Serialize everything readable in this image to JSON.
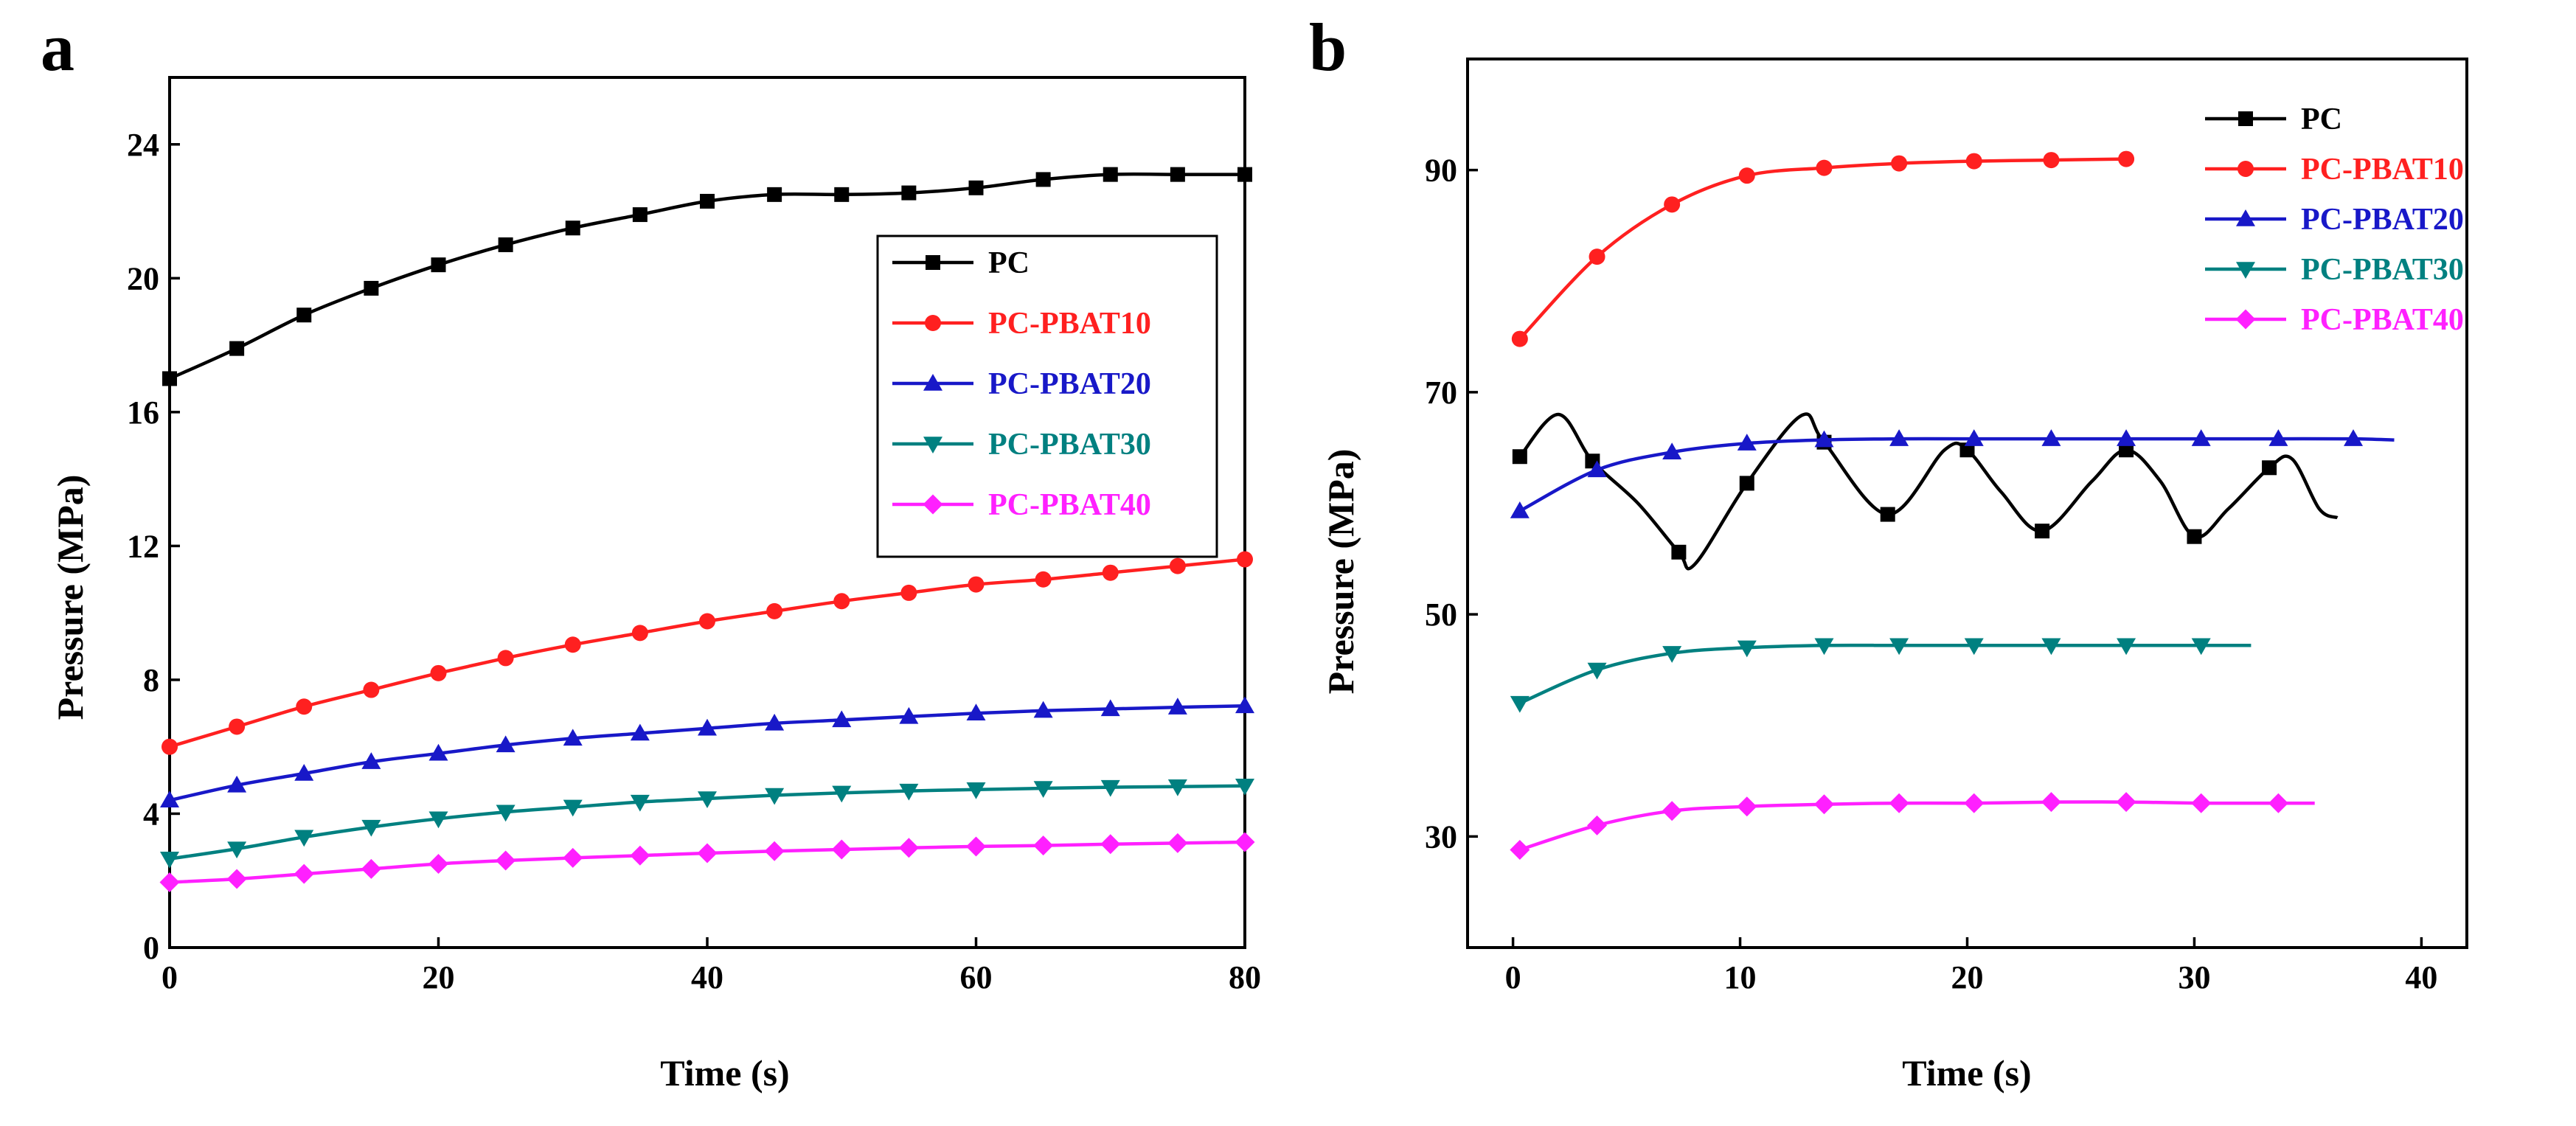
{
  "chart_data": [
    {
      "panel": "a",
      "type": "line",
      "xlabel": "Time (s)",
      "ylabel": "Pressure (MPa)",
      "xlim": [
        0,
        80
      ],
      "ylim": [
        0,
        26
      ],
      "xticks": [
        0,
        20,
        40,
        60,
        80
      ],
      "yticks": [
        0,
        4,
        8,
        12,
        16,
        20,
        24
      ],
      "legend_position": "center-right",
      "x": [
        0,
        5,
        10,
        15,
        20,
        25,
        30,
        35,
        40,
        45,
        50,
        55,
        60,
        65,
        70,
        75,
        80
      ],
      "series": [
        {
          "name": "PC",
          "color": "#000000",
          "marker": "square",
          "values": [
            17.0,
            17.9,
            18.9,
            19.7,
            20.4,
            21.0,
            21.5,
            21.9,
            22.3,
            22.5,
            22.5,
            22.55,
            22.7,
            22.95,
            23.1,
            23.1,
            23.1
          ]
        },
        {
          "name": "PC-PBAT10",
          "color": "#ff2020",
          "marker": "circle",
          "values": [
            6.0,
            6.6,
            7.2,
            7.7,
            8.2,
            8.65,
            9.05,
            9.4,
            9.75,
            10.05,
            10.35,
            10.6,
            10.85,
            11.0,
            11.2,
            11.4,
            11.6
          ]
        },
        {
          "name": "PC-PBAT20",
          "color": "#1818c8",
          "marker": "triangle-up",
          "values": [
            4.4,
            4.85,
            5.2,
            5.55,
            5.8,
            6.05,
            6.25,
            6.4,
            6.55,
            6.7,
            6.8,
            6.9,
            7.0,
            7.08,
            7.13,
            7.18,
            7.22
          ]
        },
        {
          "name": "PC-PBAT30",
          "color": "#008080",
          "marker": "triangle-down",
          "values": [
            2.65,
            2.95,
            3.3,
            3.6,
            3.85,
            4.05,
            4.2,
            4.35,
            4.45,
            4.55,
            4.62,
            4.68,
            4.72,
            4.76,
            4.79,
            4.81,
            4.83
          ]
        },
        {
          "name": "PC-PBAT40",
          "color": "#ff20ff",
          "marker": "diamond",
          "values": [
            1.95,
            2.05,
            2.2,
            2.35,
            2.5,
            2.6,
            2.68,
            2.75,
            2.82,
            2.88,
            2.93,
            2.98,
            3.02,
            3.05,
            3.09,
            3.12,
            3.15
          ]
        }
      ]
    },
    {
      "panel": "b",
      "type": "line",
      "xlabel": "Time (s)",
      "ylabel": "Pressure (MPa)",
      "xlim": [
        -2,
        42
      ],
      "ylim": [
        20,
        100
      ],
      "xticks": [
        0,
        10,
        20,
        30,
        40
      ],
      "yticks": [
        30,
        50,
        70,
        90
      ],
      "legend_position": "top-right",
      "series": [
        {
          "name": "PC",
          "color": "#000000",
          "marker": "square",
          "x": [
            0.3,
            2.0,
            3.5,
            5.5,
            7.3,
            8.0,
            10.3,
            12.7,
            13.7,
            16.5,
            19.0,
            20.0,
            21.5,
            23.3,
            25.5,
            27.0,
            28.5,
            30.0,
            31.5,
            33.3,
            34.3,
            35.5,
            36.3
          ],
          "y": [
            64.2,
            68.0,
            63.8,
            60.0,
            55.6,
            54.5,
            61.8,
            67.9,
            65.5,
            59.0,
            64.8,
            64.8,
            61.0,
            57.5,
            62.0,
            64.8,
            62.0,
            57.0,
            59.5,
            63.2,
            64.0,
            59.5,
            58.7
          ],
          "marker_idx": [
            0,
            2,
            4,
            6,
            8,
            9,
            11,
            13,
            15,
            17,
            19
          ]
        },
        {
          "name": "PC-PBAT10",
          "color": "#ff2020",
          "marker": "circle",
          "x": [
            0.3,
            3.7,
            7.0,
            10.3,
            13.7,
            17.0,
            20.3,
            23.7,
            27.0
          ],
          "y": [
            74.8,
            82.2,
            86.9,
            89.5,
            90.2,
            90.6,
            90.8,
            90.9,
            91.0
          ]
        },
        {
          "name": "PC-PBAT20",
          "color": "#1818c8",
          "marker": "triangle-up",
          "x": [
            0.3,
            3.7,
            7.0,
            10.3,
            13.7,
            17.0,
            20.3,
            23.7,
            27.0,
            30.3,
            33.7,
            37.0,
            38.8
          ],
          "y": [
            59.3,
            63.0,
            64.6,
            65.4,
            65.7,
            65.8,
            65.8,
            65.8,
            65.8,
            65.8,
            65.8,
            65.8,
            65.7
          ]
        },
        {
          "name": "PC-PBAT30",
          "color": "#008080",
          "marker": "triangle-down",
          "x": [
            0.3,
            3.7,
            7.0,
            10.3,
            13.7,
            17.0,
            20.3,
            23.7,
            27.0,
            30.3,
            32.5
          ],
          "y": [
            42.0,
            45.0,
            46.5,
            47.0,
            47.2,
            47.2,
            47.2,
            47.2,
            47.2,
            47.2,
            47.2
          ]
        },
        {
          "name": "PC-PBAT40",
          "color": "#ff20ff",
          "marker": "diamond",
          "x": [
            0.3,
            3.7,
            7.0,
            10.3,
            13.7,
            17.0,
            20.3,
            23.7,
            27.0,
            30.3,
            33.7,
            35.3
          ],
          "y": [
            28.8,
            31.0,
            32.3,
            32.7,
            32.9,
            33.0,
            33.0,
            33.1,
            33.1,
            33.0,
            33.0,
            33.0
          ]
        }
      ]
    }
  ]
}
